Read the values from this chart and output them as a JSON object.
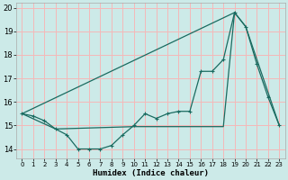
{
  "xlabel": "Humidex (Indice chaleur)",
  "background_color": "#cceae8",
  "grid_color": "#f5b8b8",
  "line_color": "#1a6b60",
  "xlim": [
    -0.5,
    23.5
  ],
  "ylim": [
    13.6,
    20.2
  ],
  "yticks": [
    14,
    15,
    16,
    17,
    18,
    19,
    20
  ],
  "xticks": [
    0,
    1,
    2,
    3,
    4,
    5,
    6,
    7,
    8,
    9,
    10,
    11,
    12,
    13,
    14,
    15,
    16,
    17,
    18,
    19,
    20,
    21,
    22,
    23
  ],
  "series1_x": [
    0,
    1,
    2,
    3,
    4,
    5,
    6,
    7,
    8,
    9,
    10,
    11,
    12,
    13,
    14,
    15,
    16,
    17,
    18,
    19,
    20,
    21,
    22,
    23
  ],
  "series1_y": [
    15.5,
    15.4,
    15.2,
    14.85,
    14.6,
    14.0,
    14.0,
    14.0,
    14.15,
    14.6,
    15.0,
    15.5,
    15.3,
    15.5,
    15.6,
    15.6,
    17.3,
    17.3,
    17.8,
    19.8,
    19.2,
    17.6,
    16.2,
    15.0
  ],
  "series2_x": [
    0,
    19
  ],
  "series2_y": [
    15.5,
    19.8
  ],
  "series3_x": [
    0,
    3,
    10,
    18,
    19,
    20,
    23
  ],
  "series3_y": [
    15.5,
    14.85,
    14.95,
    14.95,
    19.8,
    19.2,
    15.0
  ]
}
